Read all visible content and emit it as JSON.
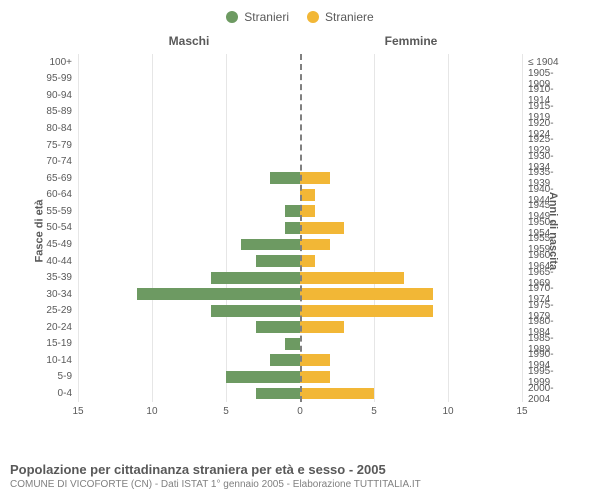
{
  "legend": {
    "male": {
      "label": "Stranieri",
      "color": "#6d9a62"
    },
    "female": {
      "label": "Straniere",
      "color": "#f2b736"
    }
  },
  "headers": {
    "male": "Maschi",
    "female": "Femmine",
    "left_axis": "Fasce di età",
    "right_axis": "Anni di nascita"
  },
  "chart": {
    "type": "population-pyramid",
    "xmax": 15,
    "xticks": [
      15,
      10,
      5,
      0,
      5,
      10,
      15
    ],
    "grid_color": "#e6e6e6",
    "center_color": "#808080",
    "background_color": "#ffffff",
    "bar_male_color": "#6d9a62",
    "bar_female_color": "#f2b736",
    "rows": [
      {
        "age": "100+",
        "birth": "≤ 1904",
        "m": 0,
        "f": 0
      },
      {
        "age": "95-99",
        "birth": "1905-1909",
        "m": 0,
        "f": 0
      },
      {
        "age": "90-94",
        "birth": "1910-1914",
        "m": 0,
        "f": 0
      },
      {
        "age": "85-89",
        "birth": "1915-1919",
        "m": 0,
        "f": 0
      },
      {
        "age": "80-84",
        "birth": "1920-1924",
        "m": 0,
        "f": 0
      },
      {
        "age": "75-79",
        "birth": "1925-1929",
        "m": 0,
        "f": 0
      },
      {
        "age": "70-74",
        "birth": "1930-1934",
        "m": 0,
        "f": 0
      },
      {
        "age": "65-69",
        "birth": "1935-1939",
        "m": 2,
        "f": 2
      },
      {
        "age": "60-64",
        "birth": "1940-1944",
        "m": 0,
        "f": 1
      },
      {
        "age": "55-59",
        "birth": "1945-1949",
        "m": 1,
        "f": 1
      },
      {
        "age": "50-54",
        "birth": "1950-1954",
        "m": 1,
        "f": 3
      },
      {
        "age": "45-49",
        "birth": "1955-1959",
        "m": 4,
        "f": 2
      },
      {
        "age": "40-44",
        "birth": "1960-1964",
        "m": 3,
        "f": 1
      },
      {
        "age": "35-39",
        "birth": "1965-1969",
        "m": 6,
        "f": 7
      },
      {
        "age": "30-34",
        "birth": "1970-1974",
        "m": 11,
        "f": 9
      },
      {
        "age": "25-29",
        "birth": "1975-1979",
        "m": 6,
        "f": 9
      },
      {
        "age": "20-24",
        "birth": "1980-1984",
        "m": 3,
        "f": 3
      },
      {
        "age": "15-19",
        "birth": "1985-1989",
        "m": 1,
        "f": 0
      },
      {
        "age": "10-14",
        "birth": "1990-1994",
        "m": 2,
        "f": 2
      },
      {
        "age": "5-9",
        "birth": "1995-1999",
        "m": 5,
        "f": 2
      },
      {
        "age": "0-4",
        "birth": "2000-2004",
        "m": 3,
        "f": 5
      }
    ]
  },
  "footer": {
    "title": "Popolazione per cittadinanza straniera per età e sesso - 2005",
    "subtitle": "COMUNE DI VICOFORTE (CN) - Dati ISTAT 1° gennaio 2005 - Elaborazione TUTTITALIA.IT"
  }
}
